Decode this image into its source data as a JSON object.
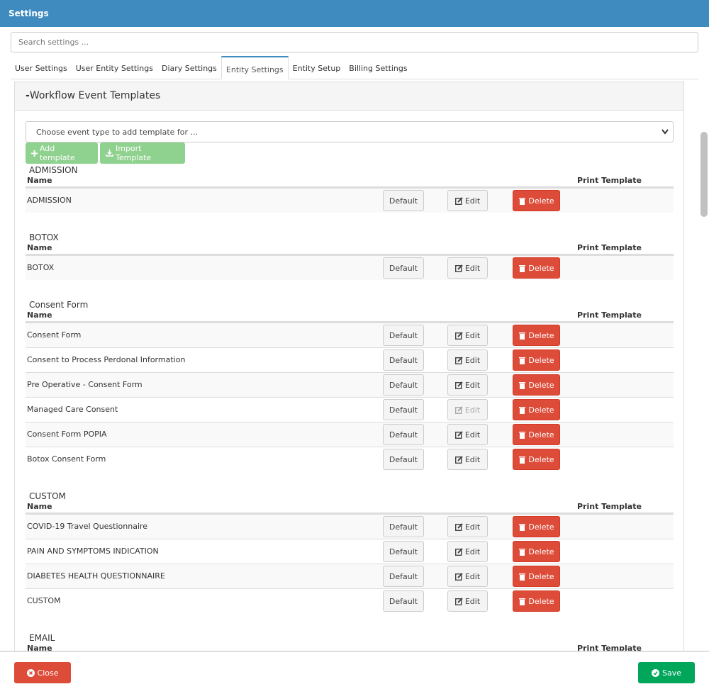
{
  "header": {
    "title": "Settings"
  },
  "search": {
    "placeholder": "Search settings ..."
  },
  "tabs": [
    "User Settings",
    "User Entity Settings",
    "Diary Settings",
    "Entity Settings",
    "Entity Setup",
    "Billing Settings"
  ],
  "panel": {
    "title": "Workflow Event Templates",
    "dropdown": "Choose event type to add template for ...",
    "buttons": {
      "add": "Add template",
      "import": "Import Template"
    },
    "columns": {
      "name": "Name",
      "print": "Print Template"
    },
    "row_actions": {
      "default": "Default",
      "edit": "Edit",
      "delete": "Delete"
    },
    "groups": [
      {
        "title": "ADMISSION",
        "rows": [
          {
            "name": "ADMISSION"
          }
        ]
      },
      {
        "title": "BOTOX",
        "rows": [
          {
            "name": "BOTOX"
          }
        ]
      },
      {
        "title": "Consent Form",
        "rows": [
          {
            "name": "Consent Form"
          },
          {
            "name": "Consent to Process Perdonal Information"
          },
          {
            "name": "Pre Operative - Consent Form"
          },
          {
            "name": "Managed Care Consent",
            "edit_disabled": true
          },
          {
            "name": "Consent Form POPIA"
          },
          {
            "name": "Botox Consent Form"
          }
        ]
      },
      {
        "title": "CUSTOM",
        "rows": [
          {
            "name": "COVID-19 Travel Questionnaire"
          },
          {
            "name": "PAIN AND SYMPTOMS INDICATION"
          },
          {
            "name": "DIABETES HEALTH QUESTIONNAIRE"
          },
          {
            "name": "CUSTOM"
          }
        ]
      },
      {
        "title": "EMAIL",
        "rows": []
      }
    ]
  },
  "footer": {
    "close": "Close",
    "save": "Save"
  }
}
